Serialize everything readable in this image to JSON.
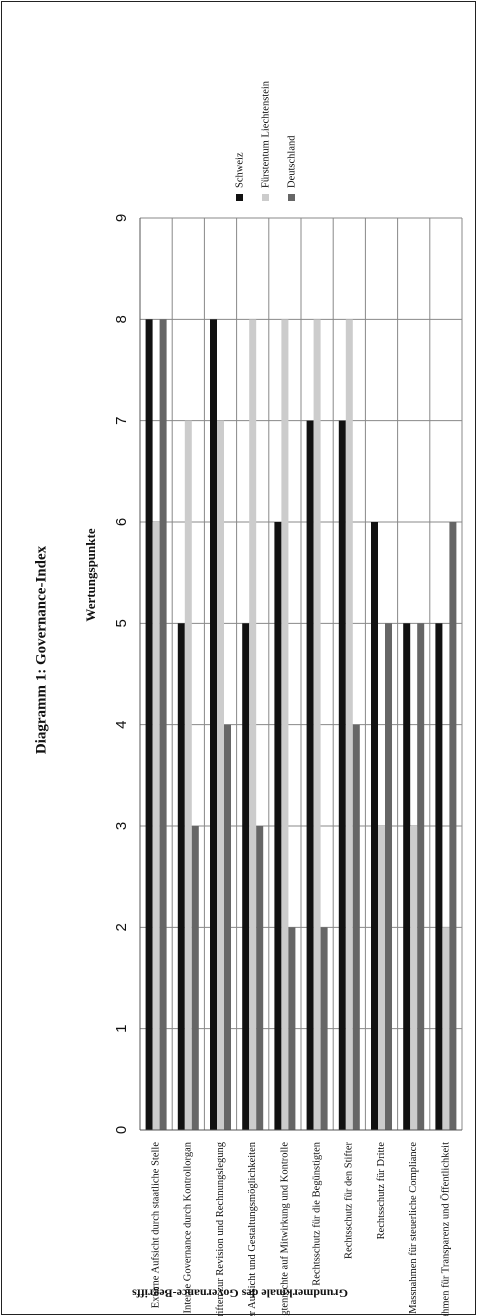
{
  "chart_data": {
    "type": "bar",
    "orientation": "rotated",
    "title": "Diagramm 1: Governance-Index",
    "y_label": "Wertungspunkte",
    "x_label": "Grundmerkmale des Governance-Begriffs",
    "categories": [
      "Externe Aufsicht durch staatliche Stelle",
      "Interne Governance durch Kontrollorgan",
      "Vorschriften zur Revision und Rechnungslegung",
      "Anpassung der Aufsicht und Gestaltungsmöglichkeiten",
      "Begünstigtenrechte auf Mitwirkung und Kontrolle",
      "Rechtsschutz für die Begünstigten",
      "Rechtsschutz für den Stifter",
      "Rechtsschutz für Dritte",
      "Massnahmen für steuerliche Compliance",
      "Massnahmen für Transparenz und Öffentlichkeit"
    ],
    "series": [
      {
        "name": "Schweiz",
        "color": "#111111",
        "values": [
          8,
          5,
          8,
          5,
          6,
          7,
          7,
          6,
          5,
          5
        ]
      },
      {
        "name": "Fürstentum Liechtenstein",
        "color": "#cccccc",
        "values": [
          6,
          7,
          7,
          8,
          8,
          8,
          8,
          3,
          3,
          2
        ]
      },
      {
        "name": "Deutschland",
        "color": "#666666",
        "values": [
          8,
          3,
          4,
          3,
          2,
          2,
          4,
          5,
          5,
          6
        ]
      }
    ],
    "ylim": [
      0,
      9
    ],
    "yticks": [
      0,
      1,
      2,
      3,
      4,
      5,
      6,
      7,
      8,
      9
    ],
    "grid": true
  }
}
